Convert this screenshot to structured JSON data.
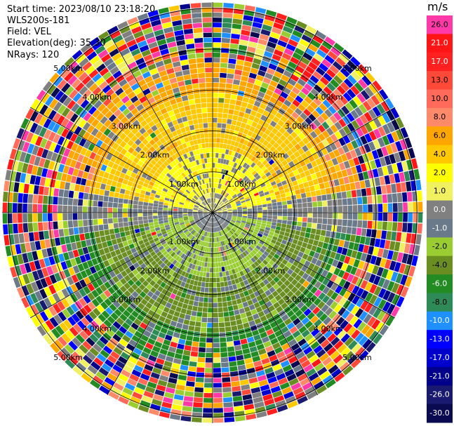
{
  "info": {
    "start_time": "Start time: 2023/08/10 23:18:20",
    "instrument": "WLS200s-181",
    "field": "Field: VEL",
    "elevation": "Elevation(deg): 35.30",
    "nrays": "NRays: 120"
  },
  "chart_data": {
    "type": "heatmap",
    "subtype": "ppi-polar",
    "field": "VEL",
    "units": "m/s",
    "elevation_deg": 35.3,
    "n_rays": 120,
    "range_ring_labels": [
      "1.00km",
      "2.00km",
      "3.00km",
      "4.00km",
      "5.00km"
    ],
    "range_rings_km": [
      1,
      2,
      3,
      4,
      5
    ],
    "max_range_km": 5.15,
    "colorbar": {
      "title": "m/s",
      "labels": [
        "26.0",
        "21.0",
        "17.0",
        "13.0",
        "10.0",
        "8.0",
        "6.0",
        "4.0",
        "2.0",
        "1.0",
        "0.0",
        "-1.0",
        "-2.0",
        "-4.0",
        "-6.0",
        "-8.0",
        "-10.0",
        "-13.0",
        "-17.0",
        "-21.0",
        "-26.0",
        "-30.0"
      ],
      "colors": [
        "#ff3aa8",
        "#ff1515",
        "#ff2020",
        "#ff4a3a",
        "#ff6a5a",
        "#ff8a6a",
        "#ffa500",
        "#ffc800",
        "#ffff00",
        "#f0f060",
        "#808080",
        "#6a7a8a",
        "#9acd32",
        "#6b8e23",
        "#228b22",
        "#2e8b57",
        "#1e90ff",
        "#0000ff",
        "#0000cd",
        "#00008b",
        "#191970",
        "#0a0a50"
      ]
    },
    "pattern": {
      "description": "receding (positive) velocities in the northern half, approaching (negative) in the southern half, noisy beyond ~3.5 km",
      "region_values_ms": {
        "north_near": 2.0,
        "north_mid": 4.0,
        "north_far": 6.0,
        "south_near": -2.0,
        "south_mid": -4.0,
        "south_far": -6.0,
        "west_east_near": 0.0
      }
    }
  }
}
